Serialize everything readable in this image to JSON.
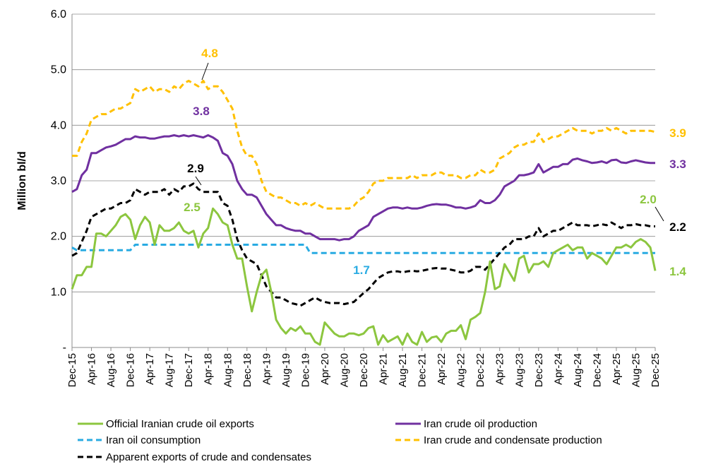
{
  "chart_data": {
    "type": "line",
    "y_label": "Million bl/d",
    "categories": [
      "Dec-15",
      null,
      null,
      null,
      "Apr-16",
      null,
      null,
      null,
      "Aug-16",
      null,
      null,
      null,
      "Dec-16",
      null,
      null,
      null,
      "Apr-17",
      null,
      null,
      null,
      "Aug-17",
      null,
      null,
      null,
      "Dec-17",
      null,
      null,
      null,
      "Apr-18",
      null,
      null,
      null,
      "Aug-18",
      null,
      null,
      null,
      "Dec-18",
      null,
      null,
      null,
      "Apr-19",
      null,
      null,
      null,
      "Aug-19",
      null,
      null,
      null,
      "Dec-19",
      null,
      null,
      null,
      "Apr-20",
      null,
      null,
      null,
      "Aug-20",
      null,
      null,
      null,
      "Dec-20",
      null,
      null,
      null,
      "Apr-21",
      null,
      null,
      null,
      "Aug-21",
      null,
      null,
      null,
      "Dec-21",
      null,
      null,
      null,
      "Apr-22",
      null,
      null,
      null,
      "Aug-22",
      null,
      null,
      null,
      "Dec-22",
      null,
      null,
      null,
      "Apr-23",
      null,
      null,
      null,
      "Aug-23",
      null,
      null,
      null,
      "Dec-23",
      null,
      null,
      null,
      "Apr-24",
      null,
      null,
      null,
      "Aug-24",
      null,
      null,
      null,
      "Dec-24",
      null,
      null,
      null,
      "Apr-25",
      null,
      null,
      null,
      "Aug-25",
      null,
      null,
      null,
      "Dec-25"
    ],
    "series": [
      {
        "name": "Official Iranian crude oil exports",
        "color": "#8cc63f",
        "style": "solid",
        "values": [
          1.05,
          1.3,
          1.3,
          1.45,
          1.45,
          2.05,
          2.05,
          2.0,
          2.1,
          2.2,
          2.35,
          2.4,
          2.3,
          1.95,
          2.2,
          2.35,
          2.25,
          1.85,
          2.2,
          2.1,
          2.1,
          2.15,
          2.25,
          2.1,
          2.05,
          2.1,
          1.8,
          2.05,
          2.15,
          2.5,
          2.4,
          2.25,
          2.2,
          1.85,
          1.6,
          1.6,
          1.1,
          0.65,
          1.0,
          1.3,
          1.4,
          1.0,
          0.5,
          0.35,
          0.25,
          0.35,
          0.3,
          0.38,
          0.25,
          0.25,
          0.1,
          0.05,
          0.45,
          0.35,
          0.25,
          0.2,
          0.2,
          0.25,
          0.25,
          0.22,
          0.25,
          0.35,
          0.38,
          0.05,
          0.22,
          0.1,
          0.15,
          0.2,
          0.05,
          0.25,
          0.1,
          0.05,
          0.28,
          0.1,
          0.18,
          0.2,
          0.1,
          0.25,
          0.3,
          0.3,
          0.4,
          0.15,
          0.5,
          0.55,
          0.62,
          1.0,
          1.55,
          1.05,
          1.1,
          1.5,
          1.35,
          1.2,
          1.6,
          1.65,
          1.35,
          1.5,
          1.5,
          1.55,
          1.45,
          1.7,
          1.75,
          1.8,
          1.85,
          1.75,
          1.8,
          1.8,
          1.6,
          1.7,
          1.65,
          1.6,
          1.5,
          1.65,
          1.8,
          1.8,
          1.85,
          1.8,
          1.9,
          1.95,
          1.9,
          1.8,
          1.38
        ]
      },
      {
        "name": "Iran crude oil production",
        "color": "#7030a0",
        "style": "solid",
        "values": [
          2.8,
          2.85,
          3.1,
          3.2,
          3.5,
          3.5,
          3.55,
          3.6,
          3.62,
          3.65,
          3.7,
          3.75,
          3.75,
          3.8,
          3.78,
          3.78,
          3.76,
          3.76,
          3.78,
          3.8,
          3.8,
          3.82,
          3.8,
          3.82,
          3.8,
          3.82,
          3.8,
          3.78,
          3.82,
          3.78,
          3.72,
          3.5,
          3.45,
          3.3,
          3.0,
          2.85,
          2.75,
          2.75,
          2.7,
          2.55,
          2.4,
          2.3,
          2.2,
          2.2,
          2.15,
          2.12,
          2.1,
          2.1,
          2.05,
          2.05,
          2.0,
          1.95,
          1.95,
          1.95,
          1.95,
          1.93,
          1.95,
          1.95,
          2.0,
          2.1,
          2.15,
          2.2,
          2.35,
          2.4,
          2.45,
          2.5,
          2.52,
          2.52,
          2.5,
          2.52,
          2.5,
          2.5,
          2.52,
          2.55,
          2.57,
          2.58,
          2.57,
          2.57,
          2.55,
          2.52,
          2.52,
          2.5,
          2.52,
          2.55,
          2.65,
          2.6,
          2.6,
          2.65,
          2.75,
          2.9,
          2.95,
          3.0,
          3.1,
          3.1,
          3.12,
          3.15,
          3.3,
          3.15,
          3.2,
          3.25,
          3.25,
          3.3,
          3.3,
          3.38,
          3.4,
          3.37,
          3.35,
          3.32,
          3.33,
          3.35,
          3.32,
          3.37,
          3.38,
          3.33,
          3.32,
          3.35,
          3.37,
          3.35,
          3.33,
          3.32,
          3.32
        ]
      },
      {
        "name": "Iran oil consumption",
        "color": "#29abe2",
        "style": "dashed",
        "values": [
          1.8,
          1.75,
          1.75,
          1.75,
          1.75,
          1.75,
          1.75,
          1.75,
          1.75,
          1.75,
          1.75,
          1.75,
          1.75,
          1.85,
          1.85,
          1.85,
          1.85,
          1.85,
          1.85,
          1.85,
          1.85,
          1.85,
          1.85,
          1.85,
          1.85,
          1.85,
          1.85,
          1.85,
          1.85,
          1.85,
          1.85,
          1.85,
          1.85,
          1.85,
          1.85,
          1.85,
          1.85,
          1.85,
          1.85,
          1.85,
          1.85,
          1.85,
          1.85,
          1.85,
          1.85,
          1.85,
          1.85,
          1.85,
          1.85,
          1.7,
          1.7,
          1.7,
          1.7,
          1.7,
          1.7,
          1.7,
          1.7,
          1.7,
          1.7,
          1.7,
          1.7,
          1.7,
          1.7,
          1.7,
          1.7,
          1.7,
          1.7,
          1.7,
          1.7,
          1.7,
          1.7,
          1.7,
          1.7,
          1.7,
          1.7,
          1.7,
          1.7,
          1.7,
          1.7,
          1.7,
          1.7,
          1.7,
          1.7,
          1.7,
          1.7,
          1.7,
          1.7,
          1.7,
          1.7,
          1.7,
          1.7,
          1.7,
          1.7,
          1.7,
          1.7,
          1.7,
          1.7,
          1.7,
          1.7,
          1.7,
          1.7,
          1.7,
          1.7,
          1.7,
          1.7,
          1.7,
          1.7,
          1.7,
          1.7,
          1.7,
          1.7,
          1.7,
          1.7,
          1.7,
          1.7,
          1.7,
          1.7,
          1.7,
          1.7,
          1.7,
          1.7
        ]
      },
      {
        "name": "Iran crude and condensate production",
        "color": "#ffc000",
        "style": "dashed",
        "values": [
          3.45,
          3.45,
          3.7,
          3.85,
          4.1,
          4.15,
          4.2,
          4.2,
          4.25,
          4.3,
          4.3,
          4.35,
          4.4,
          4.65,
          4.6,
          4.65,
          4.7,
          4.6,
          4.65,
          4.65,
          4.6,
          4.7,
          4.65,
          4.75,
          4.8,
          4.75,
          4.7,
          4.8,
          4.65,
          4.7,
          4.7,
          4.6,
          4.45,
          4.3,
          3.9,
          3.6,
          3.45,
          3.45,
          3.3,
          3.0,
          2.8,
          2.75,
          2.7,
          2.7,
          2.65,
          2.6,
          2.6,
          2.55,
          2.6,
          2.55,
          2.6,
          2.55,
          2.5,
          2.5,
          2.5,
          2.5,
          2.5,
          2.5,
          2.55,
          2.65,
          2.7,
          2.8,
          2.95,
          3.0,
          3.0,
          3.05,
          3.05,
          3.05,
          3.05,
          3.05,
          3.1,
          3.05,
          3.1,
          3.1,
          3.1,
          3.15,
          3.15,
          3.1,
          3.1,
          3.1,
          3.05,
          3.05,
          3.1,
          3.1,
          3.2,
          3.15,
          3.15,
          3.2,
          3.4,
          3.45,
          3.5,
          3.6,
          3.65,
          3.65,
          3.7,
          3.7,
          3.85,
          3.7,
          3.75,
          3.8,
          3.8,
          3.85,
          3.9,
          3.95,
          3.9,
          3.9,
          3.9,
          3.85,
          3.9,
          3.9,
          3.95,
          3.9,
          3.95,
          3.9,
          3.85,
          3.9,
          3.9,
          3.9,
          3.9,
          3.9,
          3.88
        ]
      },
      {
        "name": "Apparent exports of crude and condensates",
        "color": "#000000",
        "style": "dashed",
        "values": [
          1.65,
          1.7,
          1.9,
          2.1,
          2.35,
          2.4,
          2.45,
          2.5,
          2.5,
          2.55,
          2.6,
          2.6,
          2.65,
          2.85,
          2.8,
          2.75,
          2.8,
          2.8,
          2.8,
          2.85,
          2.75,
          2.85,
          2.8,
          2.9,
          2.9,
          2.95,
          2.85,
          2.8,
          2.8,
          2.8,
          2.8,
          2.6,
          2.55,
          2.3,
          1.95,
          1.75,
          1.6,
          1.55,
          1.5,
          1.3,
          1.1,
          1.0,
          0.9,
          0.9,
          0.85,
          0.8,
          0.78,
          0.75,
          0.8,
          0.85,
          0.9,
          0.85,
          0.82,
          0.8,
          0.8,
          0.8,
          0.78,
          0.8,
          0.82,
          0.9,
          0.98,
          1.05,
          1.15,
          1.25,
          1.3,
          1.35,
          1.37,
          1.37,
          1.35,
          1.37,
          1.38,
          1.37,
          1.38,
          1.4,
          1.42,
          1.43,
          1.42,
          1.42,
          1.4,
          1.38,
          1.35,
          1.35,
          1.38,
          1.45,
          1.45,
          1.4,
          1.5,
          1.6,
          1.7,
          1.8,
          1.85,
          1.95,
          1.95,
          1.95,
          2.0,
          2.0,
          2.15,
          2.0,
          2.05,
          2.1,
          2.1,
          2.15,
          2.2,
          2.25,
          2.2,
          2.2,
          2.2,
          2.18,
          2.2,
          2.22,
          2.2,
          2.25,
          2.2,
          2.15,
          2.2,
          2.2,
          2.22,
          2.2,
          2.2,
          2.18,
          2.18
        ]
      }
    ],
    "annotations": [
      "4.8",
      "3.8",
      "2.9",
      "2.5",
      "1.7",
      "3.9",
      "3.3",
      "2.2",
      "2.0",
      "1.4"
    ],
    "ylim": [
      0,
      6
    ],
    "yticks": [
      {
        "value": 0,
        "label": "-"
      },
      {
        "value": 1,
        "label": "1.0"
      },
      {
        "value": 2,
        "label": "2.0"
      },
      {
        "value": 3,
        "label": "3.0"
      },
      {
        "value": 4,
        "label": "4.0"
      },
      {
        "value": 5,
        "label": "5.0"
      },
      {
        "value": 6,
        "label": "6.0"
      }
    ],
    "grid": true
  }
}
